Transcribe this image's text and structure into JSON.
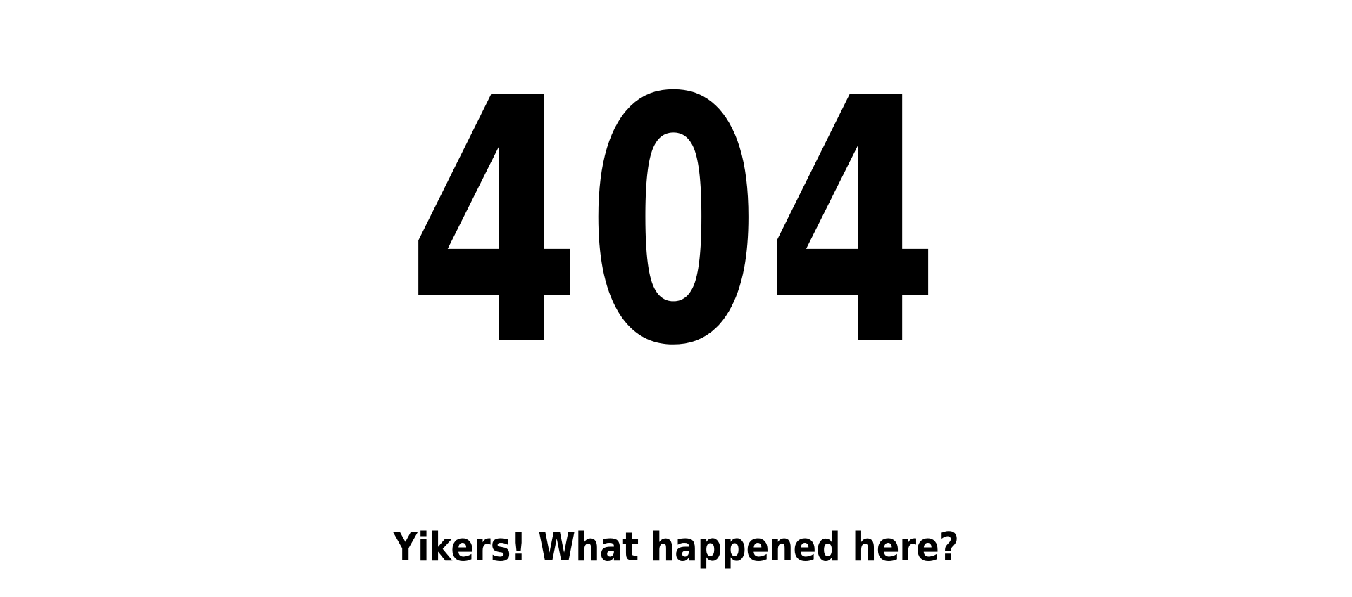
{
  "error": {
    "code": "404",
    "message": "Yikers! What happened here?"
  },
  "colors": {
    "background": "#ffffff",
    "text": "#000000"
  }
}
